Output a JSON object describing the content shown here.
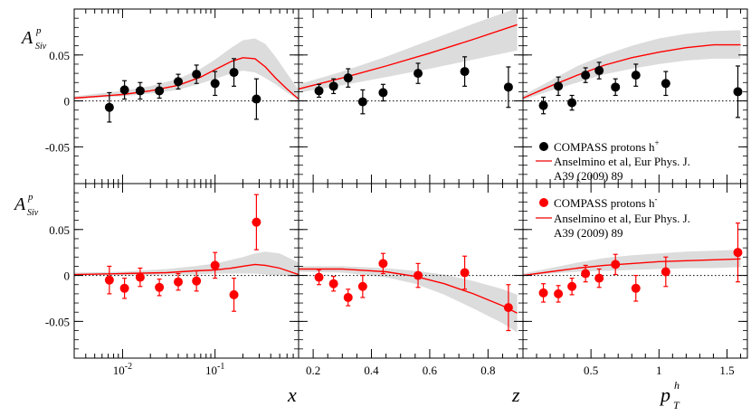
{
  "figure": {
    "ylabel_main": "A",
    "ylabel_sup": "p",
    "ylabel_sub": "Siv",
    "xlabels": {
      "x": "x",
      "z": "z",
      "pt_main": "p",
      "pt_sup": "h",
      "pt_sub": "T"
    }
  },
  "legend_top": {
    "entry1": "COMPASS protons h",
    "entry1_sup": "+",
    "entry2_line1": "Anselmino et al, Eur Phys. J.",
    "entry2_line2": "A39 (2009) 89"
  },
  "legend_bottom": {
    "entry1": "COMPASS protons h",
    "entry1_sup": "-",
    "entry2_line1": "Anselmino et al, Eur Phys. J.",
    "entry2_line2": "A39 (2009) 89"
  },
  "colors": {
    "hplus": "#000000",
    "hminus": "#ff0000",
    "curve": "#ff0000",
    "band": "#dcdcdc"
  },
  "chart_data": [
    {
      "type": "scatter",
      "row": "top",
      "col": "x",
      "xscale": "log",
      "xlim": [
        0.003,
        0.8
      ],
      "ylim": [
        -0.09,
        0.1
      ],
      "yticks": [
        -0.05,
        0,
        0.05
      ],
      "ytick_labels": [
        "-0.05",
        "0",
        "0.05"
      ],
      "xticks": [
        0.01,
        0.1
      ],
      "xtick_labels": [
        "10^-2",
        "10^-1"
      ],
      "points": [
        {
          "x": 0.0072,
          "y": -0.007,
          "err": 0.016
        },
        {
          "x": 0.0105,
          "y": 0.012,
          "err": 0.01
        },
        {
          "x": 0.0155,
          "y": 0.011,
          "err": 0.009
        },
        {
          "x": 0.025,
          "y": 0.011,
          "err": 0.008
        },
        {
          "x": 0.04,
          "y": 0.021,
          "err": 0.008
        },
        {
          "x": 0.063,
          "y": 0.029,
          "err": 0.01
        },
        {
          "x": 0.1,
          "y": 0.019,
          "err": 0.013
        },
        {
          "x": 0.16,
          "y": 0.031,
          "err": 0.015
        },
        {
          "x": 0.28,
          "y": 0.002,
          "err": 0.022
        }
      ],
      "curve": {
        "x": [
          0.003,
          0.01,
          0.02,
          0.04,
          0.07,
          0.1,
          0.15,
          0.2,
          0.27,
          0.35,
          0.45,
          0.6,
          0.8
        ],
        "y": [
          0.003,
          0.007,
          0.011,
          0.017,
          0.026,
          0.034,
          0.043,
          0.047,
          0.046,
          0.037,
          0.025,
          0.013,
          0.002
        ]
      },
      "band": {
        "x": [
          0.003,
          0.01,
          0.02,
          0.04,
          0.07,
          0.1,
          0.15,
          0.2,
          0.27,
          0.35,
          0.45,
          0.6,
          0.8
        ],
        "lo": [
          0.002,
          0.005,
          0.008,
          0.012,
          0.019,
          0.024,
          0.03,
          0.033,
          0.031,
          0.025,
          0.018,
          0.009,
          0.001
        ],
        "hi": [
          0.005,
          0.011,
          0.016,
          0.024,
          0.035,
          0.045,
          0.058,
          0.066,
          0.068,
          0.062,
          0.048,
          0.03,
          0.012
        ]
      }
    },
    {
      "type": "scatter",
      "row": "top",
      "col": "z",
      "xscale": "linear",
      "xlim": [
        0.15,
        0.92
      ],
      "ylim": [
        -0.09,
        0.1
      ],
      "yticks": [
        -0.05,
        0,
        0.05
      ],
      "xticks": [
        0.2,
        0.4,
        0.6,
        0.8
      ],
      "xtick_labels": [
        "0.2",
        "0.4",
        "0.6",
        "0.8"
      ],
      "points": [
        {
          "x": 0.22,
          "y": 0.011,
          "err": 0.007
        },
        {
          "x": 0.27,
          "y": 0.016,
          "err": 0.008
        },
        {
          "x": 0.32,
          "y": 0.025,
          "err": 0.01
        },
        {
          "x": 0.37,
          "y": -0.001,
          "err": 0.013
        },
        {
          "x": 0.44,
          "y": 0.009,
          "err": 0.009
        },
        {
          "x": 0.56,
          "y": 0.03,
          "err": 0.011
        },
        {
          "x": 0.72,
          "y": 0.032,
          "err": 0.016
        },
        {
          "x": 0.87,
          "y": 0.015,
          "err": 0.022
        }
      ],
      "curve": {
        "x": [
          0.15,
          0.3,
          0.45,
          0.6,
          0.75,
          0.9
        ],
        "y": [
          0.013,
          0.025,
          0.038,
          0.052,
          0.067,
          0.083
        ]
      },
      "band": {
        "x": [
          0.15,
          0.3,
          0.45,
          0.6,
          0.75,
          0.9
        ],
        "lo": [
          0.009,
          0.017,
          0.026,
          0.035,
          0.045,
          0.055
        ],
        "hi": [
          0.018,
          0.032,
          0.048,
          0.066,
          0.084,
          0.101
        ]
      }
    },
    {
      "type": "scatter",
      "row": "top",
      "col": "pt",
      "xscale": "linear",
      "xlim": [
        0.0,
        1.65
      ],
      "ylim": [
        -0.09,
        0.1
      ],
      "yticks": [
        -0.05,
        0,
        0.05
      ],
      "xticks": [
        0.5,
        1.0,
        1.5
      ],
      "xtick_labels": [
        "0.5",
        "1",
        "1.5"
      ],
      "points": [
        {
          "x": 0.15,
          "y": -0.005,
          "err": 0.009
        },
        {
          "x": 0.26,
          "y": 0.016,
          "err": 0.01
        },
        {
          "x": 0.36,
          "y": -0.002,
          "err": 0.008
        },
        {
          "x": 0.46,
          "y": 0.028,
          "err": 0.008
        },
        {
          "x": 0.56,
          "y": 0.033,
          "err": 0.009
        },
        {
          "x": 0.68,
          "y": 0.015,
          "err": 0.009
        },
        {
          "x": 0.83,
          "y": 0.028,
          "err": 0.012
        },
        {
          "x": 1.05,
          "y": 0.019,
          "err": 0.013
        },
        {
          "x": 1.58,
          "y": 0.01,
          "err": 0.028
        }
      ],
      "curve": {
        "x": [
          0.0,
          0.2,
          0.4,
          0.6,
          0.8,
          1.0,
          1.2,
          1.4,
          1.6
        ],
        "y": [
          0.003,
          0.016,
          0.028,
          0.039,
          0.047,
          0.053,
          0.058,
          0.061,
          0.061
        ]
      },
      "band": {
        "x": [
          0.0,
          0.2,
          0.4,
          0.6,
          0.8,
          1.0,
          1.2,
          1.4,
          1.6
        ],
        "lo": [
          0.001,
          0.011,
          0.02,
          0.029,
          0.035,
          0.04,
          0.044,
          0.046,
          0.046
        ],
        "hi": [
          0.006,
          0.022,
          0.038,
          0.05,
          0.06,
          0.068,
          0.073,
          0.076,
          0.077
        ]
      }
    },
    {
      "type": "scatter",
      "row": "bottom",
      "col": "x",
      "xscale": "log",
      "xlim": [
        0.003,
        0.8
      ],
      "ylim": [
        -0.09,
        0.1
      ],
      "yticks": [
        -0.05,
        0,
        0.05
      ],
      "ytick_labels": [
        "-0.05",
        "0",
        "0.05"
      ],
      "xticks": [
        0.01,
        0.1
      ],
      "xtick_labels": [
        "10^-2",
        "10^-1"
      ],
      "points": [
        {
          "x": 0.0072,
          "y": -0.005,
          "err": 0.015
        },
        {
          "x": 0.0105,
          "y": -0.014,
          "err": 0.011
        },
        {
          "x": 0.0155,
          "y": -0.002,
          "err": 0.01
        },
        {
          "x": 0.025,
          "y": -0.013,
          "err": 0.009
        },
        {
          "x": 0.04,
          "y": -0.007,
          "err": 0.009
        },
        {
          "x": 0.063,
          "y": -0.006,
          "err": 0.011
        },
        {
          "x": 0.1,
          "y": 0.011,
          "err": 0.014
        },
        {
          "x": 0.16,
          "y": -0.021,
          "err": 0.018
        },
        {
          "x": 0.28,
          "y": 0.058,
          "err": 0.03
        }
      ],
      "curve": {
        "x": [
          0.003,
          0.01,
          0.03,
          0.06,
          0.1,
          0.15,
          0.2,
          0.27,
          0.35,
          0.5,
          0.8
        ],
        "y": [
          0.001,
          0.002,
          0.003,
          0.005,
          0.006,
          0.008,
          0.01,
          0.012,
          0.011,
          0.008,
          0.001
        ]
      },
      "band": {
        "x": [
          0.003,
          0.01,
          0.03,
          0.06,
          0.1,
          0.15,
          0.2,
          0.27,
          0.35,
          0.5,
          0.8
        ],
        "lo": [
          0.0,
          0.0,
          0.001,
          0.001,
          0.002,
          0.002,
          0.002,
          0.002,
          0.001,
          0.0,
          -0.002
        ],
        "hi": [
          0.003,
          0.004,
          0.007,
          0.01,
          0.013,
          0.017,
          0.02,
          0.024,
          0.026,
          0.024,
          0.014
        ]
      }
    },
    {
      "type": "scatter",
      "row": "bottom",
      "col": "z",
      "xscale": "linear",
      "xlim": [
        0.15,
        0.92
      ],
      "ylim": [
        -0.09,
        0.1
      ],
      "yticks": [
        -0.05,
        0,
        0.05
      ],
      "xticks": [
        0.2,
        0.4,
        0.6,
        0.8
      ],
      "xtick_labels": [
        "0.2",
        "0.4",
        "0.6",
        "0.8"
      ],
      "points": [
        {
          "x": 0.22,
          "y": -0.002,
          "err": 0.008
        },
        {
          "x": 0.27,
          "y": -0.009,
          "err": 0.008
        },
        {
          "x": 0.32,
          "y": -0.024,
          "err": 0.009
        },
        {
          "x": 0.37,
          "y": -0.012,
          "err": 0.012
        },
        {
          "x": 0.44,
          "y": 0.013,
          "err": 0.011
        },
        {
          "x": 0.56,
          "y": 0.0,
          "err": 0.013
        },
        {
          "x": 0.72,
          "y": 0.003,
          "err": 0.018
        },
        {
          "x": 0.87,
          "y": -0.035,
          "err": 0.025
        }
      ],
      "curve": {
        "x": [
          0.15,
          0.3,
          0.45,
          0.55,
          0.65,
          0.75,
          0.85,
          0.9
        ],
        "y": [
          0.007,
          0.007,
          0.004,
          -0.001,
          -0.009,
          -0.02,
          -0.033,
          -0.041
        ]
      },
      "band": {
        "x": [
          0.15,
          0.3,
          0.45,
          0.55,
          0.65,
          0.75,
          0.85,
          0.9
        ],
        "lo": [
          0.004,
          0.003,
          -0.002,
          -0.009,
          -0.021,
          -0.036,
          -0.052,
          -0.062
        ],
        "hi": [
          0.01,
          0.01,
          0.008,
          0.005,
          0.001,
          -0.006,
          -0.015,
          -0.021
        ]
      }
    },
    {
      "type": "scatter",
      "row": "bottom",
      "col": "pt",
      "xscale": "linear",
      "xlim": [
        0.0,
        1.65
      ],
      "ylim": [
        -0.09,
        0.1
      ],
      "yticks": [
        -0.05,
        0,
        0.05
      ],
      "xticks": [
        0.5,
        1.0,
        1.5
      ],
      "xtick_labels": [
        "0.5",
        "1",
        "1.5"
      ],
      "points": [
        {
          "x": 0.15,
          "y": -0.019,
          "err": 0.01
        },
        {
          "x": 0.26,
          "y": -0.02,
          "err": 0.009
        },
        {
          "x": 0.36,
          "y": -0.012,
          "err": 0.009
        },
        {
          "x": 0.46,
          "y": 0.002,
          "err": 0.009
        },
        {
          "x": 0.56,
          "y": -0.003,
          "err": 0.01
        },
        {
          "x": 0.68,
          "y": 0.012,
          "err": 0.011
        },
        {
          "x": 0.83,
          "y": -0.014,
          "err": 0.014
        },
        {
          "x": 1.05,
          "y": 0.004,
          "err": 0.016
        },
        {
          "x": 1.58,
          "y": 0.025,
          "err": 0.032
        }
      ],
      "curve": {
        "x": [
          0.0,
          0.2,
          0.4,
          0.6,
          0.8,
          1.0,
          1.2,
          1.4,
          1.6
        ],
        "y": [
          0.0,
          0.004,
          0.008,
          0.011,
          0.013,
          0.015,
          0.016,
          0.017,
          0.018
        ]
      },
      "band": {
        "x": [
          0.0,
          0.2,
          0.4,
          0.6,
          0.8,
          1.0,
          1.2,
          1.4,
          1.6
        ],
        "lo": [
          -0.001,
          0.002,
          0.004,
          0.005,
          0.006,
          0.007,
          0.008,
          0.008,
          0.009
        ],
        "hi": [
          0.002,
          0.008,
          0.014,
          0.019,
          0.022,
          0.024,
          0.026,
          0.027,
          0.028
        ]
      }
    }
  ]
}
